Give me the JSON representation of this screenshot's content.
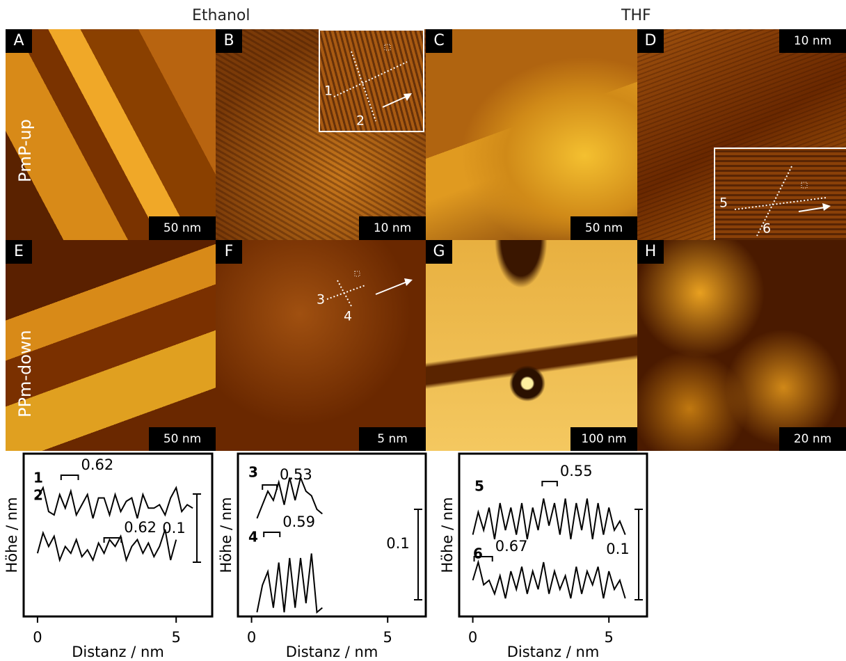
{
  "columns": [
    "Ethanol",
    "THF"
  ],
  "rows": [
    "PmP-up",
    "PPm-down"
  ],
  "panels": [
    {
      "label": "A",
      "scale": "50 nm"
    },
    {
      "label": "B",
      "scale": "10 nm",
      "lines": [
        "1",
        "2"
      ]
    },
    {
      "label": "C",
      "scale": "50 nm"
    },
    {
      "label": "D",
      "scale": "10 nm",
      "lines": [
        "5",
        "6"
      ]
    },
    {
      "label": "E",
      "scale": "50 nm"
    },
    {
      "label": "F",
      "scale": "5 nm",
      "lines": [
        "3",
        "4"
      ]
    },
    {
      "label": "G",
      "scale": "100 nm"
    },
    {
      "label": "H",
      "scale": "20 nm"
    }
  ],
  "profiles": [
    {
      "type": "line",
      "xlabel": "Distanz / nm",
      "ylabel": "Höhe / nm",
      "xlim": [
        -0.5,
        6.3
      ],
      "xticks": [
        0,
        5
      ],
      "scale_bar": 0.1,
      "color": "#000000",
      "series": [
        {
          "name": "1",
          "period": 0.62,
          "x": [
            0,
            0.2,
            0.4,
            0.6,
            0.8,
            1,
            1.2,
            1.4,
            1.6,
            1.8,
            2,
            2.2,
            2.4,
            2.6,
            2.8,
            3,
            3.2,
            3.4,
            3.6,
            3.8,
            4,
            4.2,
            4.4,
            4.6,
            4.8,
            5,
            5.2,
            5.4,
            5.6
          ],
          "values": [
            0.03,
            0.045,
            0.01,
            0.005,
            0.035,
            0.015,
            0.04,
            0.005,
            0.02,
            0.035,
            0.0,
            0.03,
            0.03,
            0.005,
            0.035,
            0.01,
            0.025,
            0.03,
            0.0,
            0.035,
            0.015,
            0.015,
            0.02,
            0.005,
            0.03,
            0.045,
            0.01,
            0.02,
            0.015
          ]
        },
        {
          "name": "2",
          "period": 0.62,
          "x": [
            0,
            0.2,
            0.4,
            0.6,
            0.8,
            1,
            1.2,
            1.4,
            1.6,
            1.8,
            2,
            2.2,
            2.4,
            2.6,
            2.8,
            3,
            3.2,
            3.4,
            3.6,
            3.8,
            4,
            4.2,
            4.4,
            4.6,
            4.8,
            5
          ],
          "values": [
            0.01,
            0.04,
            0.02,
            0.035,
            0.0,
            0.02,
            0.01,
            0.03,
            0.005,
            0.015,
            0.0,
            0.025,
            0.01,
            0.03,
            0.02,
            0.035,
            0.0,
            0.02,
            0.03,
            0.01,
            0.025,
            0.005,
            0.02,
            0.045,
            0.0,
            0.03
          ]
        }
      ]
    },
    {
      "type": "line",
      "xlabel": "Distanz / nm",
      "ylabel": "Höhe / nm",
      "xlim": [
        -0.5,
        6.4
      ],
      "xticks": [
        0,
        5
      ],
      "scale_bar": 0.1,
      "color": "#000000",
      "series": [
        {
          "name": "3",
          "period": 0.53,
          "x": [
            0.2,
            0.4,
            0.6,
            0.8,
            1,
            1.2,
            1.4,
            1.6,
            1.8,
            2,
            2.2,
            2.4,
            2.6
          ],
          "values": [
            0.0,
            0.015,
            0.03,
            0.02,
            0.04,
            0.015,
            0.045,
            0.02,
            0.045,
            0.03,
            0.025,
            0.01,
            0.005
          ]
        },
        {
          "name": "4",
          "period": 0.59,
          "x": [
            0.2,
            0.4,
            0.6,
            0.8,
            1,
            1.2,
            1.4,
            1.6,
            1.8,
            2,
            2.2,
            2.4,
            2.6
          ],
          "values": [
            0.0,
            0.03,
            0.045,
            0.005,
            0.055,
            0.0,
            0.06,
            0.005,
            0.06,
            0.01,
            0.065,
            0.0,
            0.005
          ]
        }
      ]
    },
    {
      "type": "line",
      "xlabel": "Distanz / nm",
      "ylabel": "Höhe / nm",
      "xlim": [
        -0.5,
        6.4
      ],
      "xticks": [
        0,
        5
      ],
      "scale_bar": 0.1,
      "color": "#000000",
      "series": [
        {
          "name": "5",
          "period": 0.55,
          "x": [
            0,
            0.2,
            0.4,
            0.6,
            0.8,
            1,
            1.2,
            1.4,
            1.6,
            1.8,
            2,
            2.2,
            2.4,
            2.6,
            2.8,
            3,
            3.2,
            3.4,
            3.6,
            3.8,
            4,
            4.2,
            4.4,
            4.6,
            4.8,
            5,
            5.2,
            5.4,
            5.6
          ],
          "values": [
            0.005,
            0.03,
            0.01,
            0.035,
            0.0,
            0.04,
            0.01,
            0.035,
            0.005,
            0.04,
            0.0,
            0.035,
            0.01,
            0.045,
            0.015,
            0.04,
            0.005,
            0.045,
            0.0,
            0.04,
            0.01,
            0.045,
            0.0,
            0.04,
            0.005,
            0.035,
            0.01,
            0.02,
            0.005
          ]
        },
        {
          "name": "6",
          "period": 0.67,
          "x": [
            0,
            0.2,
            0.4,
            0.6,
            0.8,
            1,
            1.2,
            1.4,
            1.6,
            1.8,
            2,
            2.2,
            2.4,
            2.6,
            2.8,
            3,
            3.2,
            3.4,
            3.6,
            3.8,
            4,
            4.2,
            4.4,
            4.6,
            4.8,
            5,
            5.2,
            5.4,
            5.6
          ],
          "values": [
            0.02,
            0.04,
            0.015,
            0.02,
            0.005,
            0.025,
            0.0,
            0.03,
            0.01,
            0.035,
            0.005,
            0.03,
            0.01,
            0.04,
            0.005,
            0.03,
            0.01,
            0.025,
            0.0,
            0.035,
            0.005,
            0.03,
            0.015,
            0.035,
            0.0,
            0.03,
            0.01,
            0.02,
            0.0
          ]
        }
      ]
    }
  ]
}
